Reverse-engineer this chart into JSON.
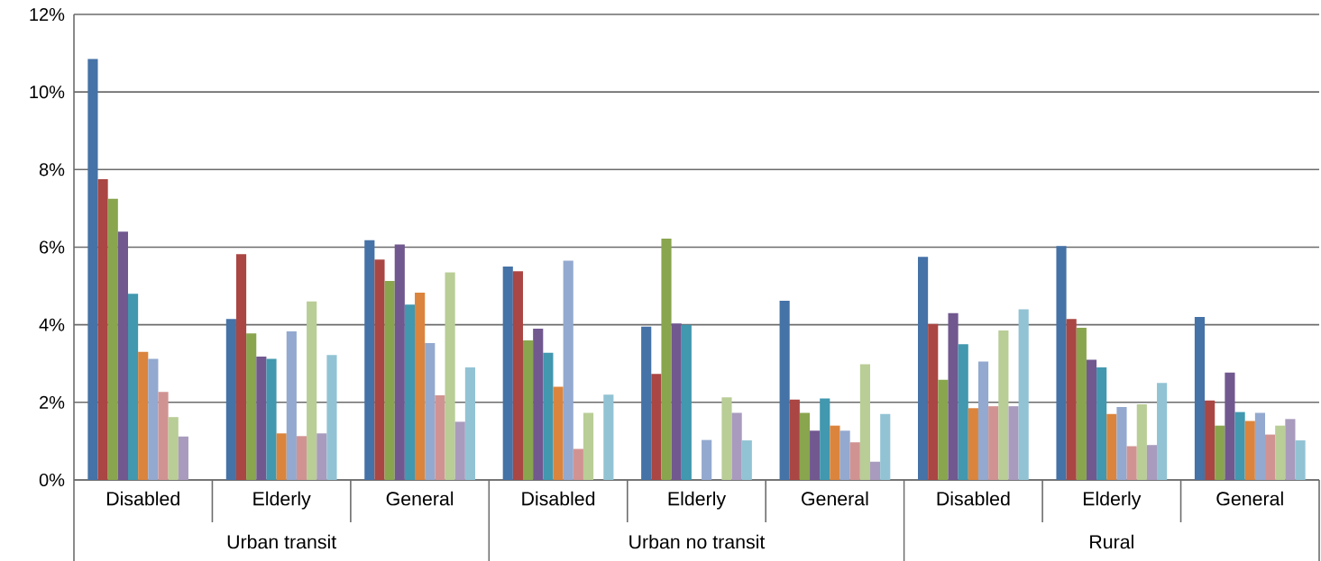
{
  "chart_data": {
    "type": "bar",
    "categories": [
      "Disabled",
      "Elderly",
      "General",
      "Disabled",
      "Elderly",
      "General",
      "Disabled",
      "Elderly",
      "General"
    ],
    "annotations": [
      "Urban transit",
      "Urban no transit",
      "Rural"
    ],
    "series": [
      {
        "color": "#4572a7",
        "values": [
          10.85,
          4.15,
          6.18,
          5.5,
          3.95,
          4.62,
          5.75,
          6.03,
          4.2
        ]
      },
      {
        "color": "#aa4643",
        "values": [
          7.75,
          5.82,
          5.68,
          5.38,
          2.73,
          2.07,
          4.02,
          4.15,
          2.05
        ]
      },
      {
        "color": "#89a54e",
        "values": [
          7.25,
          3.78,
          5.13,
          3.6,
          6.22,
          1.73,
          2.58,
          3.92,
          1.4
        ]
      },
      {
        "color": "#71588f",
        "values": [
          6.4,
          3.18,
          6.07,
          3.9,
          4.03,
          1.27,
          4.3,
          3.1,
          2.77
        ]
      },
      {
        "color": "#4198af",
        "values": [
          4.8,
          3.12,
          4.52,
          3.28,
          4.0,
          2.1,
          3.5,
          2.9,
          1.75
        ]
      },
      {
        "color": "#db843d",
        "values": [
          3.3,
          1.2,
          4.83,
          2.4,
          null,
          1.4,
          1.85,
          1.7,
          1.52
        ]
      },
      {
        "color": "#93a9cf",
        "values": [
          3.12,
          3.83,
          3.53,
          5.65,
          1.03,
          1.27,
          3.05,
          1.88,
          1.73
        ]
      },
      {
        "color": "#d19392",
        "values": [
          2.27,
          1.13,
          2.18,
          0.8,
          null,
          0.97,
          1.9,
          0.87,
          1.17
        ]
      },
      {
        "color": "#b9cd96",
        "values": [
          1.62,
          4.6,
          5.35,
          1.73,
          2.13,
          2.98,
          3.85,
          1.95,
          1.4
        ]
      },
      {
        "color": "#a99bbd",
        "values": [
          1.12,
          1.2,
          1.5,
          null,
          1.73,
          0.47,
          1.9,
          0.9,
          1.57
        ]
      },
      {
        "color": "#92c3d4",
        "values": [
          null,
          3.22,
          2.9,
          2.2,
          1.02,
          1.7,
          4.4,
          2.5,
          1.02
        ]
      }
    ],
    "ylim": [
      0,
      12
    ],
    "yticks": [
      {
        "value": 0,
        "label": "0%"
      },
      {
        "value": 2,
        "label": "2%"
      },
      {
        "value": 4,
        "label": "4%"
      },
      {
        "value": 6,
        "label": "6%"
      },
      {
        "value": 8,
        "label": "8%"
      },
      {
        "value": 10,
        "label": "10%"
      },
      {
        "value": 12,
        "label": "12%"
      }
    ],
    "grid": "y"
  }
}
